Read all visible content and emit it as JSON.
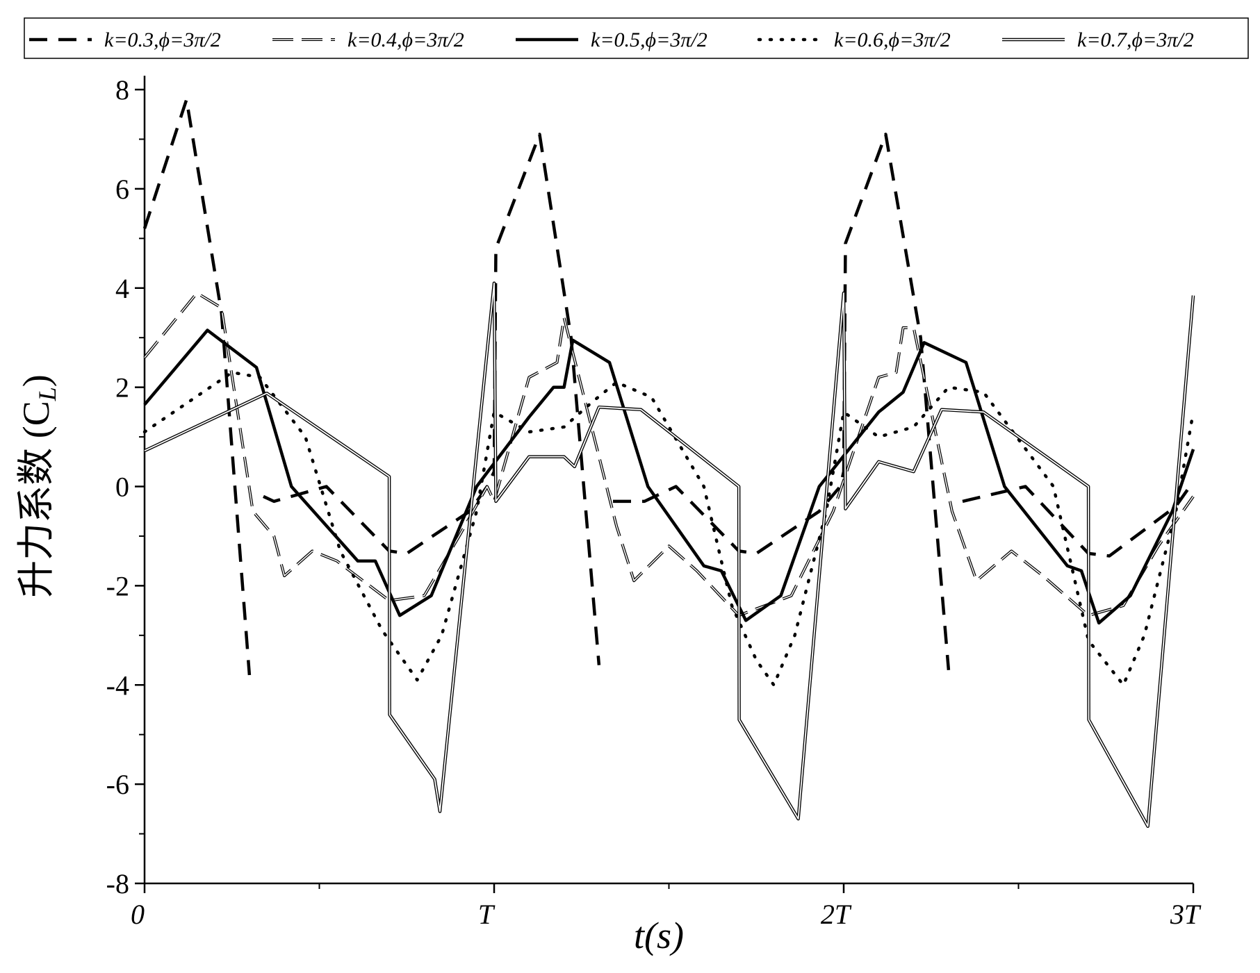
{
  "chart_data": {
    "type": "line",
    "ylabel_parts": [
      "升力系数 (C",
      "L",
      ")"
    ],
    "xlabel": "t(s)",
    "xlim": [
      0,
      3
    ],
    "xticks": [
      0,
      {
        "value": 1,
        "label": "T"
      },
      {
        "value": 2,
        "label": "2T"
      },
      {
        "value": 3,
        "label": "3T"
      }
    ],
    "xminorticks": [
      0.5,
      1.5,
      2.5
    ],
    "ylim": [
      -8,
      8
    ],
    "yticks": [
      -8,
      -6,
      -4,
      -2,
      0,
      2,
      4,
      6,
      8
    ],
    "yminorticks": [
      -7,
      -5,
      -3,
      -1,
      1,
      3,
      5,
      7
    ],
    "legend": "top",
    "series": [
      {
        "name": "k=0.3,ϕ=3π/2",
        "color": "#000000",
        "linestyle": "dashed",
        "x": [
          0,
          0.12,
          0.22,
          0.3,
          0.31,
          0.34,
          0.37,
          0.52,
          0.7,
          0.75,
          0.93,
          0.98,
          1.0,
          1.005,
          1.13,
          1.22,
          1.3,
          1.31,
          1.34,
          1.43,
          1.52,
          1.7,
          1.75,
          1.93,
          1.99,
          2.0,
          2.005,
          2.12,
          2.22,
          2.3,
          2.31,
          2.34,
          2.52,
          2.7,
          2.76,
          2.95,
          3.0
        ],
        "values": [
          5.2,
          7.8,
          3.5,
          -3.8,
          null,
          -0.2,
          -0.3,
          0,
          -1.3,
          -1.35,
          -0.5,
          0,
          0.3,
          4.8,
          7.1,
          3.0,
          -3.6,
          null,
          -0.3,
          -0.3,
          0,
          -1.3,
          -1.35,
          -0.5,
          0,
          0.3,
          4.9,
          7.1,
          3.0,
          -3.7,
          null,
          -0.3,
          0,
          -1.35,
          -1.4,
          -0.4,
          0.1
        ]
      },
      {
        "name": "k=0.4,ϕ=3π/2",
        "color": "#000000",
        "linestyle": "double-dashed",
        "x": [
          0,
          0.15,
          0.22,
          0.31,
          0.37,
          0.4,
          0.48,
          0.55,
          0.7,
          0.8,
          0.9,
          0.98,
          1.0,
          1.1,
          1.18,
          1.2,
          1.35,
          1.4,
          1.5,
          1.58,
          1.7,
          1.85,
          1.97,
          2.1,
          2.15,
          2.17,
          2.2,
          2.31,
          2.38,
          2.48,
          2.57,
          2.7,
          2.8,
          2.9,
          3.0
        ],
        "values": [
          2.6,
          3.9,
          3.6,
          -0.5,
          -1.0,
          -1.8,
          -1.3,
          -1.5,
          -2.3,
          -2.2,
          -1.0,
          0,
          -0.3,
          2.2,
          2.5,
          3.4,
          -0.8,
          -1.9,
          -1.2,
          -1.7,
          -2.6,
          -2.2,
          -0.5,
          2.2,
          2.3,
          3.2,
          3.2,
          -0.5,
          -1.9,
          -1.3,
          -1.8,
          -2.6,
          -2.4,
          -1.2,
          -0.2
        ]
      },
      {
        "name": "k=0.5,ϕ=3π/2",
        "color": "#000000",
        "linestyle": "solid",
        "x": [
          0,
          0.18,
          0.32,
          0.42,
          0.61,
          0.66,
          0.73,
          0.82,
          0.95,
          1.1,
          1.17,
          1.2,
          1.225,
          1.33,
          1.44,
          1.6,
          1.65,
          1.72,
          1.82,
          1.93,
          2.1,
          2.17,
          2.23,
          2.35,
          2.46,
          2.64,
          2.68,
          2.73,
          2.82,
          2.94,
          3.0
        ],
        "values": [
          1.65,
          3.15,
          2.4,
          0,
          -1.5,
          -1.5,
          -2.6,
          -2.2,
          0,
          1.4,
          2.0,
          2.0,
          2.95,
          2.5,
          0,
          -1.6,
          -1.7,
          -2.7,
          -2.2,
          0,
          1.5,
          1.9,
          2.9,
          2.5,
          0,
          -1.6,
          -1.7,
          -2.75,
          -2.2,
          -0.5,
          0.75
        ]
      },
      {
        "name": "k=0.6,ϕ=3π/2",
        "color": "#000000",
        "linestyle": "dotted",
        "x": [
          0,
          0.25,
          0.33,
          0.46,
          0.56,
          0.68,
          0.78,
          0.85,
          0.95,
          1.0,
          1.1,
          1.2,
          1.28,
          1.35,
          1.45,
          1.6,
          1.68,
          1.75,
          1.8,
          1.86,
          1.95,
          2.0,
          2.1,
          2.2,
          2.3,
          2.4,
          2.6,
          2.7,
          2.8,
          2.86,
          2.95,
          3.0
        ],
        "values": [
          1.1,
          2.3,
          2.2,
          1.0,
          -1.3,
          -2.9,
          -3.9,
          -3.0,
          -0.5,
          1.5,
          1.1,
          1.2,
          1.7,
          2.1,
          1.8,
          0,
          -2.4,
          -3.5,
          -4.0,
          -3.0,
          -0.5,
          1.5,
          1.0,
          1.2,
          2.0,
          1.9,
          0,
          -3.1,
          -4.0,
          -3.0,
          -0.5,
          1.5
        ]
      },
      {
        "name": "k=0.7,ϕ=3π/2",
        "color": "#000000",
        "linestyle": "double",
        "x": [
          0,
          0.35,
          0.7,
          0.701,
          0.83,
          0.845,
          1.0,
          1.005,
          1.1,
          1.2,
          1.23,
          1.3,
          1.42,
          1.7,
          1.701,
          1.87,
          2.0,
          2.005,
          2.1,
          2.2,
          2.28,
          2.4,
          2.7,
          2.701,
          2.87,
          3.0
        ],
        "values": [
          0.72,
          1.88,
          0.2,
          -4.6,
          -5.9,
          -6.55,
          4.1,
          -0.3,
          0.6,
          0.6,
          0.4,
          1.6,
          1.55,
          0.0,
          -4.7,
          -6.7,
          3.9,
          -0.45,
          0.5,
          0.3,
          1.55,
          1.5,
          0,
          -4.7,
          -6.85,
          3.85
        ]
      }
    ]
  }
}
